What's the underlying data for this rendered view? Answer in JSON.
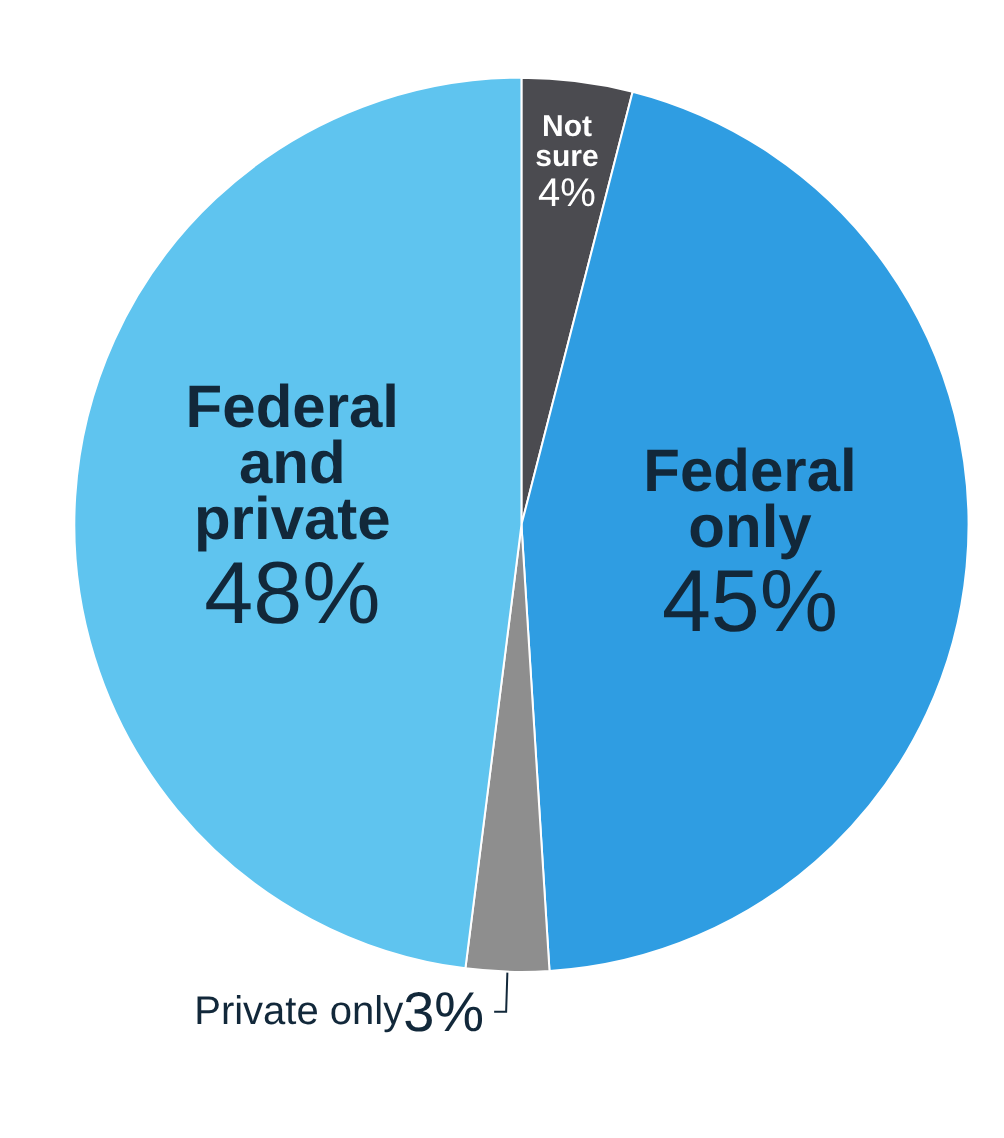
{
  "chart_data": {
    "type": "pie",
    "categories": [
      "Not sure",
      "Federal only",
      "Private only",
      "Federal and private"
    ],
    "values": [
      4,
      45,
      3,
      48
    ],
    "colors": [
      "#4b4b50",
      "#2f9de2",
      "#8e8e8e",
      "#5fc4ef"
    ],
    "value_labels": [
      "4%",
      "45%",
      "3%",
      "48%"
    ],
    "legend": false
  }
}
